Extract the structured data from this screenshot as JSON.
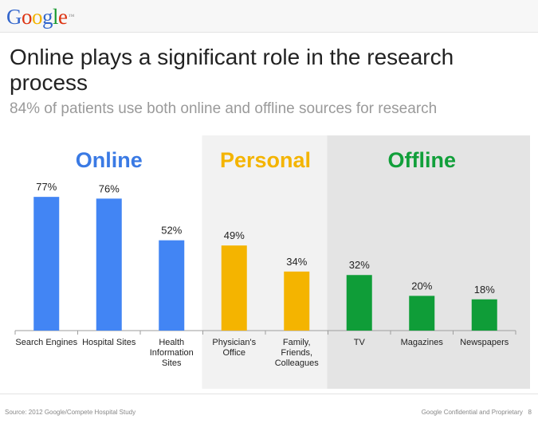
{
  "logo": {
    "letters": [
      {
        "ch": "G",
        "color": "#3366cc"
      },
      {
        "ch": "o",
        "color": "#dd3311"
      },
      {
        "ch": "o",
        "color": "#f2b400"
      },
      {
        "ch": "g",
        "color": "#3366cc"
      },
      {
        "ch": "l",
        "color": "#1a9a31"
      },
      {
        "ch": "e",
        "color": "#dd3311"
      }
    ],
    "tm": "™"
  },
  "title": "Online plays a significant role in the research process",
  "subtitle": "84% of patients use both online and offline sources for research",
  "footer": {
    "source": "Source: 2012 Google/Compete Hospital Study",
    "confidential": "Google Confidential and Proprietary",
    "page": "8"
  },
  "chart_data": {
    "type": "bar",
    "ylim": [
      0,
      100
    ],
    "unit": "%",
    "groups": [
      {
        "name": "Online",
        "color": "#4285f4",
        "bg": "#ffffff",
        "label_color": "#3a7ae4",
        "count": 3
      },
      {
        "name": "Personal",
        "color": "#f4b400",
        "bg": "#f2f2f2",
        "label_color": "#f4b400",
        "count": 2
      },
      {
        "name": "Offline",
        "color": "#0f9d38",
        "bg": "#e4e4e4",
        "label_color": "#119f3a",
        "count": 3
      }
    ],
    "categories": [
      [
        "Search Engines"
      ],
      [
        "Hospital Sites"
      ],
      [
        "Health",
        "Information",
        "Sites"
      ],
      [
        "Physician's",
        "Office"
      ],
      [
        "Family,",
        "Friends,",
        "Colleagues"
      ],
      [
        "TV"
      ],
      [
        "Magazines"
      ],
      [
        "Newspapers"
      ]
    ],
    "values": [
      77,
      76,
      52,
      49,
      34,
      32,
      20,
      18
    ]
  }
}
